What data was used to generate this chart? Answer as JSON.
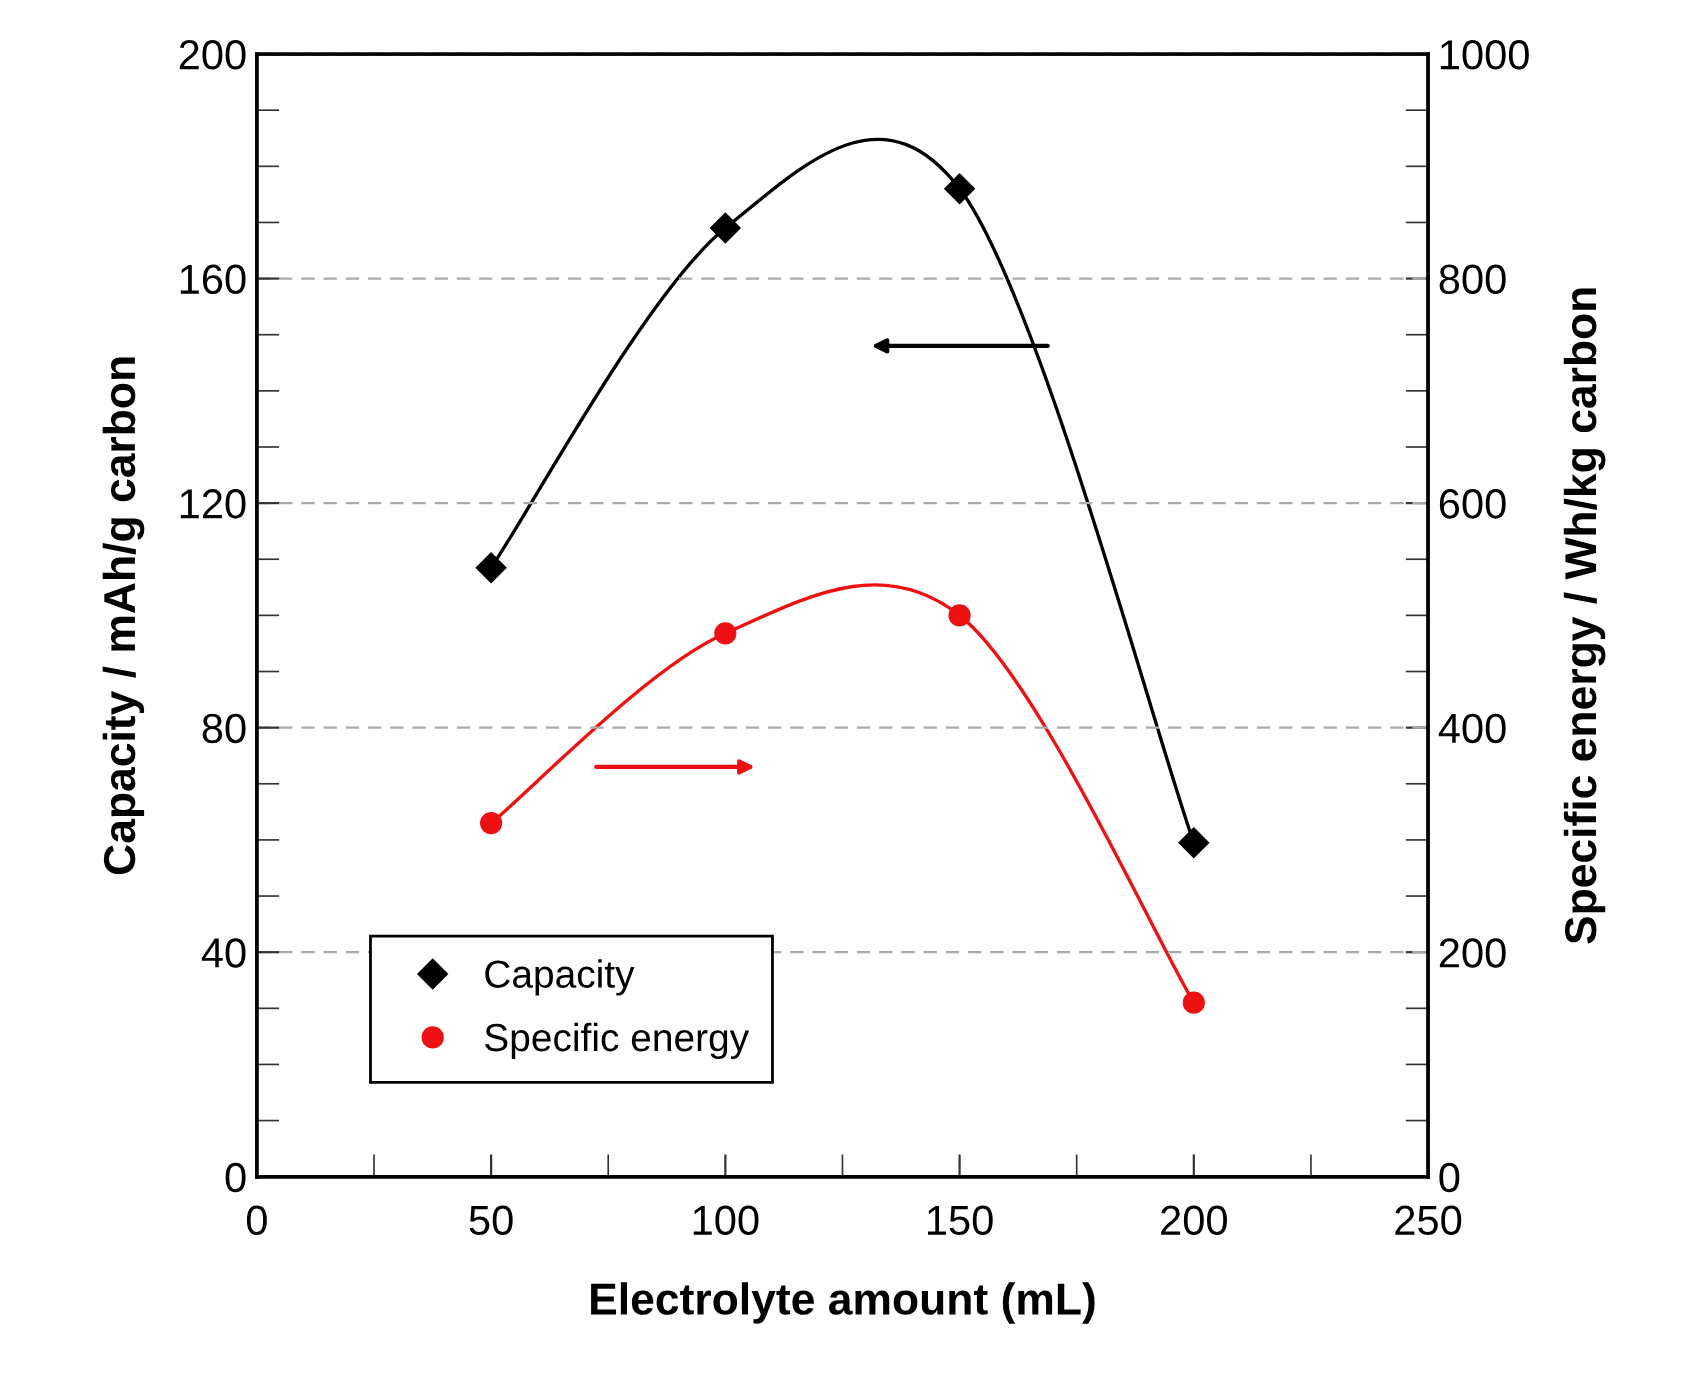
{
  "chart_data": {
    "type": "line",
    "xlabel": "Electrolyte amount (mL)",
    "ylabel": "Capacity / mAh/g carbon",
    "y2label": "Specific energy / Wh/kg carbon",
    "x": [
      50,
      100,
      150,
      200
    ],
    "series": [
      {
        "name": "Capacity",
        "color": "#000000",
        "marker": "diamond",
        "values": [
          108.5,
          169,
          176,
          59.5
        ]
      },
      {
        "name": "Specific energy",
        "color": "#ee1111",
        "marker": "circle",
        "axis": "y2",
        "values": [
          315,
          484,
          500,
          155
        ]
      }
    ],
    "xlim": [
      0,
      250
    ],
    "xticks": [
      0,
      50,
      100,
      150,
      200,
      250
    ],
    "ylim": [
      0,
      200
    ],
    "yticks": [
      0,
      40,
      80,
      120,
      160,
      200
    ],
    "y2lim": [
      0,
      1000
    ],
    "y2ticks": [
      0,
      200,
      400,
      600,
      800,
      1000
    ],
    "grid": "y",
    "legend": "bottom left",
    "line_style": "solid"
  }
}
